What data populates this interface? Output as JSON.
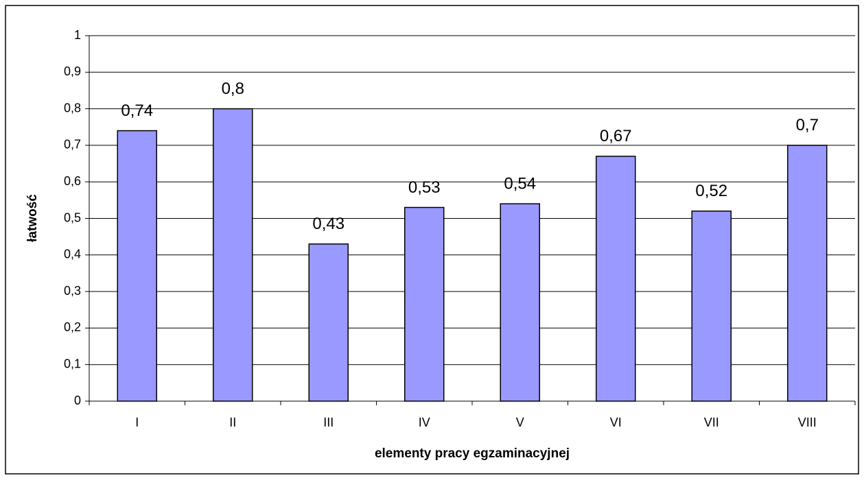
{
  "chart_data": {
    "type": "bar",
    "x_label": "elementy pracy egzaminacyjnej",
    "y_label": "łatwość",
    "categories": [
      "I",
      "II",
      "III",
      "IV",
      "V",
      "VI",
      "VII",
      "VIII"
    ],
    "values": [
      0.74,
      0.8,
      0.43,
      0.53,
      0.54,
      0.67,
      0.52,
      0.7
    ],
    "value_labels": [
      "0,74",
      "0,8",
      "0,43",
      "0,53",
      "0,54",
      "0,67",
      "0,52",
      "0,7"
    ],
    "color": "#9999ff",
    "ylim": [
      0,
      1
    ],
    "yticks": [
      0,
      {
        "value": 0.1,
        "label": "0,1"
      },
      {
        "value": 0.2,
        "label": "0,2"
      },
      {
        "value": 0.3,
        "label": "0,3"
      },
      {
        "value": 0.4,
        "label": "0,4"
      },
      {
        "value": 0.5,
        "label": "0,5"
      },
      {
        "value": 0.6,
        "label": "0,6"
      },
      {
        "value": 0.7,
        "label": "0,7"
      },
      {
        "value": 0.8,
        "label": "0,8"
      },
      {
        "value": 0.9,
        "label": "0,9"
      },
      1
    ],
    "grid": true
  }
}
